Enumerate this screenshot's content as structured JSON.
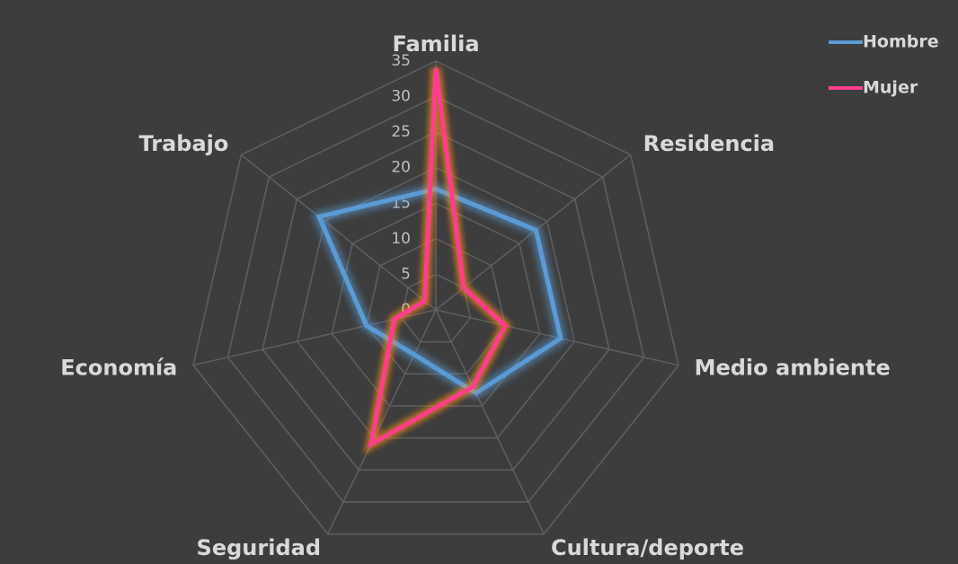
{
  "chart_data": {
    "type": "radar",
    "categories": [
      "Familia",
      "Residencia",
      "Medio ambiente",
      "Cultura/deporte",
      "Seguridad",
      "Economía",
      "Trabajo"
    ],
    "series": [
      {
        "name": "Hombre",
        "color": "#5b9bd5",
        "values": [
          17,
          18,
          18,
          13,
          7,
          10,
          21
        ]
      },
      {
        "name": "Mujer",
        "color": "#ff3d8b",
        "values": [
          34,
          5,
          10,
          12,
          21,
          6,
          2
        ]
      }
    ],
    "ylim": [
      0,
      35
    ],
    "yticks": [
      0,
      5,
      10,
      15,
      20,
      25,
      30,
      35
    ],
    "grid": true,
    "legend": "top-right"
  }
}
